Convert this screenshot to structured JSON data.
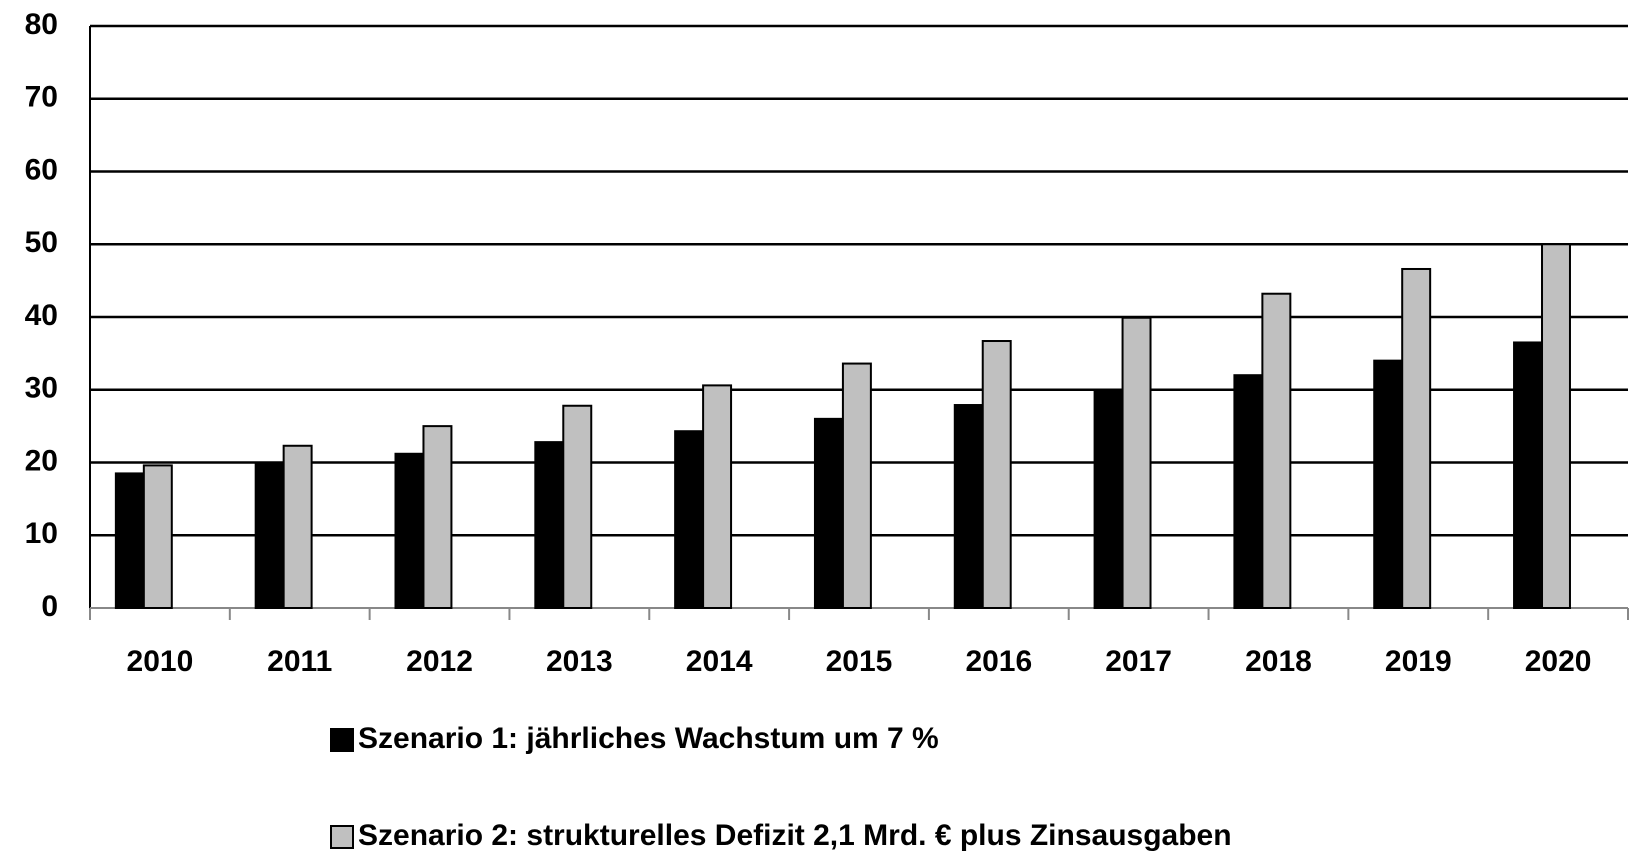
{
  "chart_data": {
    "type": "bar",
    "categories": [
      "2010",
      "2011",
      "2012",
      "2013",
      "2014",
      "2015",
      "2016",
      "2017",
      "2018",
      "2019",
      "2020"
    ],
    "series": [
      {
        "name": "Szenario 1: jährliches Wachstum um 7 %",
        "color": "#000000",
        "values": [
          18.5,
          20,
          21.2,
          22.8,
          24.3,
          26,
          27.9,
          30,
          32,
          34,
          36.5
        ]
      },
      {
        "name": "Szenario 2: strukturelles Defizit 2,1 Mrd. € plus Zinsausgaben",
        "color": "#c0c0c0",
        "values": [
          19.6,
          22.3,
          25,
          27.8,
          30.6,
          33.6,
          36.7,
          39.9,
          43.2,
          46.6,
          50
        ]
      }
    ],
    "ylim": [
      0,
      80
    ],
    "yticks": [
      0,
      10,
      20,
      30,
      40,
      50,
      60,
      70,
      80
    ],
    "grid": true,
    "legend": "bottom"
  }
}
